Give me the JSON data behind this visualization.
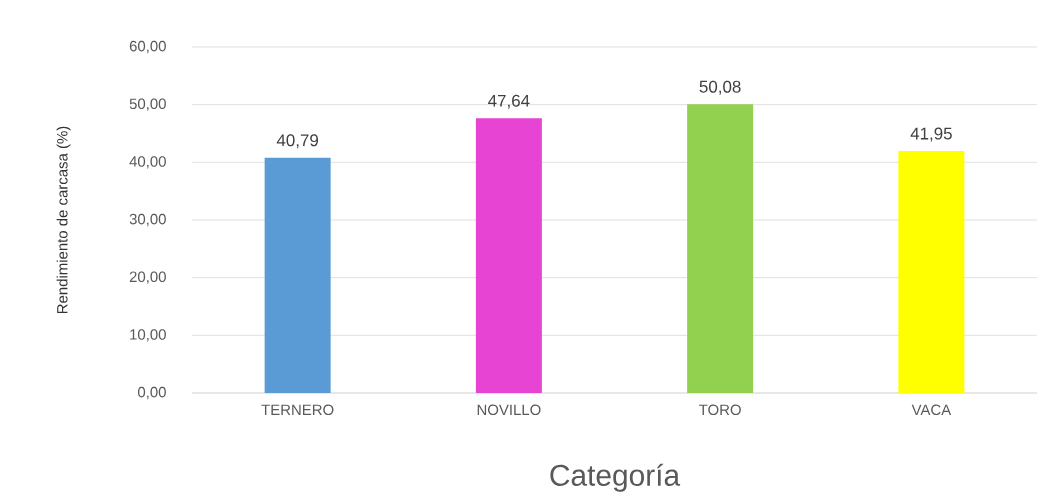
{
  "chart_data": {
    "type": "bar",
    "xlabel": "Categoría",
    "ylabel": "Rendimiento de carcasa (%)",
    "categories": [
      "TERNERO",
      "NOVILLO",
      "TORO",
      "VACA"
    ],
    "values": [
      40.79,
      47.64,
      50.08,
      41.95
    ],
    "colors": [
      "#5b9bd5",
      "#e844d4",
      "#92d050",
      "#ffff00"
    ],
    "value_labels": [
      "40,79",
      "47,64",
      "50,08",
      "41,95"
    ],
    "ylim": [
      0,
      60
    ],
    "yticks": [
      {
        "value": 0,
        "label": "0,00"
      },
      {
        "value": 10,
        "label": "10,00"
      },
      {
        "value": 20,
        "label": "20,00"
      },
      {
        "value": 30,
        "label": "30,00"
      },
      {
        "value": 40,
        "label": "40,00"
      },
      {
        "value": 50,
        "label": "50,00"
      },
      {
        "value": 60,
        "label": "60,00"
      }
    ],
    "grid": "y"
  }
}
